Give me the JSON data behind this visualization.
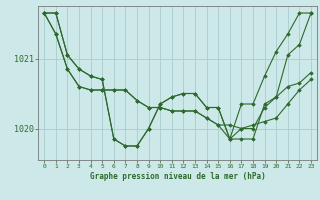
{
  "background_color": "#cce8e8",
  "grid_color": "#aacccc",
  "line_color": "#2d6a2d",
  "marker_color": "#2d6a2d",
  "title": "Graphe pression niveau de la mer (hPa)",
  "xlim": [
    -0.5,
    23.5
  ],
  "ylim": [
    1019.55,
    1021.75
  ],
  "series": [
    [
      1021.65,
      1021.65,
      1021.05,
      1020.85,
      1020.75,
      1020.7,
      1019.85,
      1019.75,
      1019.75,
      1020.0,
      1020.35,
      1020.45,
      1020.5,
      1020.5,
      1020.3,
      1020.3,
      1019.85,
      1020.0,
      1020.0,
      1020.3,
      1020.45,
      1021.05,
      1021.2,
      1021.65
    ],
    [
      1021.65,
      1021.65,
      1021.05,
      1020.85,
      1020.75,
      1020.7,
      1019.85,
      1019.75,
      1019.75,
      1020.0,
      1020.35,
      1020.45,
      1020.5,
      1020.5,
      1020.3,
      1020.3,
      1019.85,
      1020.35,
      1020.35,
      1020.75,
      1021.1,
      1021.35,
      1021.65,
      1021.65
    ],
    [
      1021.65,
      1021.35,
      1020.85,
      1020.6,
      1020.55,
      1020.55,
      1020.55,
      1020.55,
      1020.4,
      1020.3,
      1020.3,
      1020.25,
      1020.25,
      1020.25,
      1020.15,
      1020.05,
      1020.05,
      1020.0,
      1020.05,
      1020.1,
      1020.15,
      1020.35,
      1020.55,
      1020.7
    ],
    [
      1021.65,
      1021.35,
      1020.85,
      1020.6,
      1020.55,
      1020.55,
      1020.55,
      1020.55,
      1020.4,
      1020.3,
      1020.3,
      1020.25,
      1020.25,
      1020.25,
      1020.15,
      1020.05,
      1019.85,
      1019.85,
      1019.85,
      1020.35,
      1020.45,
      1020.6,
      1020.65,
      1020.8
    ]
  ],
  "xticks": [
    0,
    1,
    2,
    3,
    4,
    5,
    6,
    7,
    8,
    9,
    10,
    11,
    12,
    13,
    14,
    15,
    16,
    17,
    18,
    19,
    20,
    21,
    22,
    23
  ],
  "yticks": [
    1020,
    1021
  ],
  "font_color": "#2d6a2d"
}
